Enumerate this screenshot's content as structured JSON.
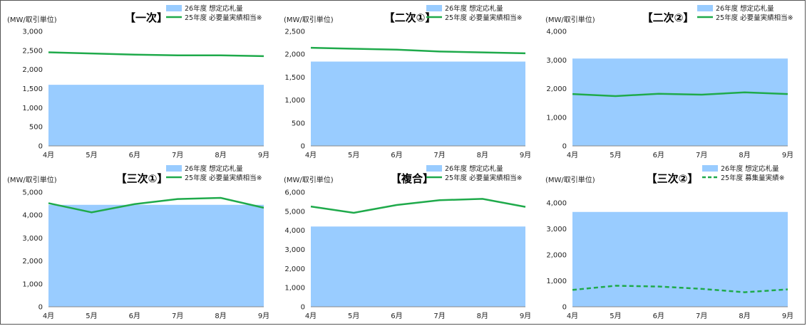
{
  "chart_data": [
    {
      "type": "area",
      "title": "【一次】",
      "unit_label": "(MW/取引単位)",
      "categories": [
        "4月",
        "5月",
        "6月",
        "7月",
        "8月",
        "9月"
      ],
      "ylim": [
        0,
        3000
      ],
      "yticks": [
        "0",
        "500",
        "1,000",
        "1,500",
        "2,000",
        "2,500",
        "3,000"
      ],
      "series": [
        {
          "name": "26年度 想定応札量",
          "kind": "area",
          "color": "#99ccff",
          "values": [
            1600,
            1600,
            1600,
            1600,
            1600,
            1600
          ]
        },
        {
          "name": "25年度 必要量実績相当※",
          "kind": "line",
          "color": "#1faa4b",
          "values": [
            2450,
            2420,
            2390,
            2370,
            2370,
            2350
          ]
        }
      ]
    },
    {
      "type": "area",
      "title": "【二次①】",
      "unit_label": "(MW/取引単位)",
      "categories": [
        "4月",
        "5月",
        "6月",
        "7月",
        "8月",
        "9月"
      ],
      "ylim": [
        0,
        2500
      ],
      "yticks": [
        "0",
        "500",
        "1,000",
        "1,500",
        "2,000",
        "2,500"
      ],
      "series": [
        {
          "name": "26年度 想定応札量",
          "kind": "area",
          "color": "#99ccff",
          "values": [
            1840,
            1840,
            1840,
            1840,
            1840,
            1840
          ]
        },
        {
          "name": "25年度 必要量実績相当※",
          "kind": "line",
          "color": "#1faa4b",
          "values": [
            2140,
            2120,
            2100,
            2060,
            2040,
            2020
          ]
        }
      ]
    },
    {
      "type": "area",
      "title": "【二次②】",
      "unit_label": "(MW/取引単位)",
      "categories": [
        "4月",
        "5月",
        "6月",
        "7月",
        "8月",
        "9月"
      ],
      "ylim": [
        0,
        4000
      ],
      "yticks": [
        "0",
        "1,000",
        "2,000",
        "3,000",
        "4,000"
      ],
      "series": [
        {
          "name": "26年度 想定応札量",
          "kind": "area",
          "color": "#99ccff",
          "values": [
            3050,
            3050,
            3050,
            3050,
            3050,
            3050
          ]
        },
        {
          "name": "25年度 必要量実績相当※",
          "kind": "line",
          "color": "#1faa4b",
          "values": [
            1810,
            1740,
            1820,
            1790,
            1870,
            1810
          ]
        }
      ]
    },
    {
      "type": "area",
      "title": "【三次①】",
      "unit_label": "(MW/取引単位)",
      "categories": [
        "4月",
        "5月",
        "6月",
        "7月",
        "8月",
        "9月"
      ],
      "ylim": [
        0,
        5000
      ],
      "yticks": [
        "0",
        "1,000",
        "2,000",
        "3,000",
        "4,000",
        "5,000"
      ],
      "series": [
        {
          "name": "26年度 想定応札量",
          "kind": "area",
          "color": "#99ccff",
          "values": [
            4450,
            4450,
            4450,
            4450,
            4450,
            4450
          ]
        },
        {
          "name": "25年度 必要量実績相当※",
          "kind": "line",
          "color": "#1faa4b",
          "values": [
            4520,
            4120,
            4480,
            4700,
            4750,
            4320
          ]
        }
      ]
    },
    {
      "type": "area",
      "title": "【複合】",
      "unit_label": "(MW/取引単位)",
      "categories": [
        "4月",
        "5月",
        "6月",
        "7月",
        "8月",
        "9月"
      ],
      "ylim": [
        0,
        6000
      ],
      "yticks": [
        "0",
        "1,000",
        "2,000",
        "3,000",
        "4,000",
        "5,000",
        "6,000"
      ],
      "series": [
        {
          "name": "26年度 想定応札量",
          "kind": "area",
          "color": "#99ccff",
          "values": [
            4200,
            4200,
            4200,
            4200,
            4200,
            4200
          ]
        },
        {
          "name": "25年度 必要量実績相当※",
          "kind": "line",
          "color": "#1faa4b",
          "values": [
            5250,
            4920,
            5330,
            5580,
            5650,
            5230
          ]
        }
      ]
    },
    {
      "type": "area",
      "title": "【三次②】",
      "unit_label": "(MW/取引単位)",
      "categories": [
        "4月",
        "5月",
        "6月",
        "7月",
        "8月",
        "9月"
      ],
      "ylim": [
        0,
        4000
      ],
      "yticks": [
        "0",
        "1,000",
        "2,000",
        "3,000",
        "4,000"
      ],
      "series": [
        {
          "name": "26年度 想定応札量",
          "kind": "area",
          "color": "#99ccff",
          "values": [
            3650,
            3650,
            3650,
            3650,
            3650,
            3650
          ]
        },
        {
          "name": "25年度 募集量実績※",
          "kind": "dashed",
          "color": "#1faa4b",
          "values": [
            650,
            810,
            780,
            690,
            560,
            670
          ]
        }
      ]
    }
  ]
}
